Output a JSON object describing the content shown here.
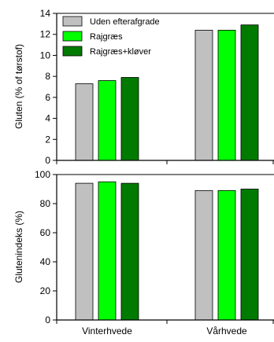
{
  "chart_data": [
    {
      "type": "bar",
      "categories": [
        "Vinterhvede",
        "Vårhvede"
      ],
      "series": [
        {
          "name": "Uden efterafgrade",
          "color": "#c0c0c0",
          "values": [
            7.3,
            12.4
          ]
        },
        {
          "name": "Rajgræs",
          "color": "#00ff00",
          "values": [
            7.6,
            12.4
          ]
        },
        {
          "name": "Rajgræs+kløver",
          "color": "#007a00",
          "values": [
            7.9,
            12.9
          ]
        }
      ],
      "ylabel": "Gluten (% of tørstof)",
      "ylim": [
        0,
        14
      ],
      "yticks": [
        0,
        2,
        4,
        6,
        8,
        10,
        12,
        14
      ],
      "legend": "top-left",
      "grid": false
    },
    {
      "type": "bar",
      "categories": [
        "Vinterhvede",
        "Vårhvede"
      ],
      "series": [
        {
          "name": "Uden efterafgrade",
          "color": "#c0c0c0",
          "values": [
            94,
            89
          ]
        },
        {
          "name": "Rajgræs",
          "color": "#00ff00",
          "values": [
            95,
            89
          ]
        },
        {
          "name": "Rajgræs+kløver",
          "color": "#007a00",
          "values": [
            94,
            90
          ]
        }
      ],
      "ylabel": "Glutenindeks (%)",
      "ylim": [
        0,
        100
      ],
      "yticks": [
        0,
        20,
        40,
        60,
        80,
        100
      ],
      "legend": "none",
      "grid": false
    }
  ]
}
